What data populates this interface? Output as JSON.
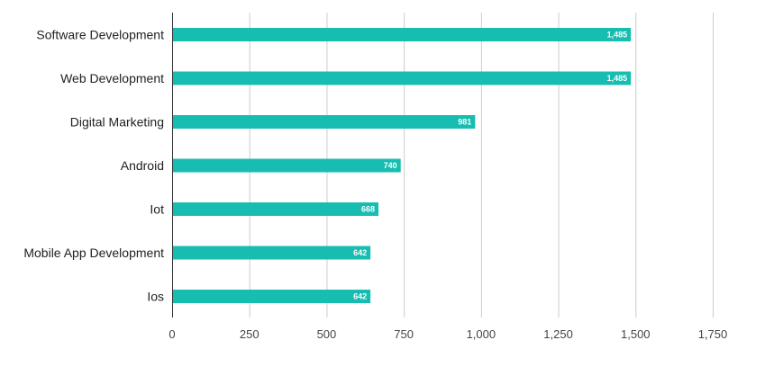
{
  "chart_data": {
    "type": "bar",
    "orientation": "horizontal",
    "categories": [
      "Software Development",
      "Web Development",
      "Digital Marketing",
      "Android",
      "Iot",
      "Mobile App Development",
      "Ios"
    ],
    "values": [
      1485,
      1485,
      981,
      740,
      668,
      642,
      642
    ],
    "value_labels": [
      "1,485",
      "1,485",
      "981",
      "740",
      "668",
      "642",
      "642"
    ],
    "xlim": [
      0,
      1750
    ],
    "xticks": [
      0,
      250,
      500,
      750,
      1000,
      1250,
      1500,
      1750
    ],
    "xtick_labels": [
      "0",
      "250",
      "500",
      "750",
      "1,000",
      "1,250",
      "1,500",
      "1,750"
    ],
    "grid": "vertical",
    "legend": "none",
    "bar_color": "#17bdb1"
  }
}
